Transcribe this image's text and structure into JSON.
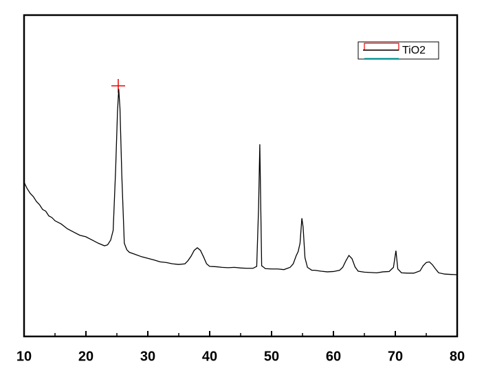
{
  "chart_data": {
    "type": "line",
    "series": [
      {
        "name": "TiO2",
        "color": "#000000",
        "x": [
          10,
          10.5,
          11,
          11.5,
          12,
          12.5,
          13,
          13.5,
          14,
          14.5,
          15,
          16,
          17,
          18,
          19,
          20,
          21,
          22,
          23,
          23.5,
          24,
          24.4,
          24.8,
          25.1,
          25.3,
          25.5,
          25.8,
          26.2,
          26.6,
          27,
          28,
          29,
          30,
          31,
          32,
          33,
          34,
          35,
          36,
          36.5,
          37,
          37.5,
          38,
          38.5,
          39,
          39.5,
          40,
          41,
          42,
          43,
          44,
          45,
          46,
          47,
          47.6,
          47.9,
          48.1,
          48.4,
          49,
          50,
          51,
          52,
          53,
          53.5,
          54,
          54.3,
          54.6,
          54.9,
          55.1,
          55.4,
          55.8,
          56.5,
          57,
          58,
          59,
          60,
          61,
          61.5,
          62,
          62.5,
          63,
          63.5,
          64,
          65,
          66,
          67,
          68,
          69,
          69.7,
          70.1,
          70.4,
          71,
          72,
          73,
          74,
          74.5,
          75,
          75.5,
          76,
          76.5,
          77,
          78,
          79,
          80
        ],
        "values": [
          48,
          46,
          44.5,
          43.5,
          42,
          41,
          39.5,
          39,
          37.5,
          37,
          36,
          35,
          33.5,
          32.5,
          31.5,
          31,
          30,
          29,
          28.2,
          28.5,
          30,
          33,
          52,
          70,
          77,
          71,
          50,
          29,
          27,
          26.2,
          25.5,
          24.8,
          24.3,
          23.8,
          23.2,
          23,
          22.6,
          22.4,
          22.6,
          23.6,
          25,
          26.8,
          27.6,
          26.8,
          24.8,
          22.6,
          21.8,
          21.7,
          21.5,
          21.4,
          21.5,
          21.3,
          21.2,
          21.2,
          21.8,
          40,
          59.8,
          22,
          21.1,
          21,
          21,
          20.8,
          21.5,
          22.6,
          25.2,
          26.4,
          29,
          36.8,
          34,
          24.5,
          21.5,
          20.6,
          20.6,
          20.3,
          20.1,
          20.2,
          20.6,
          21.5,
          23.5,
          25.2,
          24.2,
          21.6,
          20.3,
          20,
          19.9,
          19.8,
          20.1,
          20.2,
          21.5,
          26.7,
          21,
          19.8,
          19.7,
          19.7,
          20.4,
          22,
          23,
          23.2,
          22.3,
          21,
          19.8,
          19.4,
          19.3,
          19.2
        ]
      }
    ],
    "xlim": [
      10,
      80
    ],
    "xticks": [
      10,
      20,
      30,
      40,
      50,
      60,
      70,
      80
    ],
    "xminorticks": [
      15,
      25,
      35,
      45,
      55,
      65,
      75
    ],
    "ylim": [
      0,
      100
    ]
  }
}
